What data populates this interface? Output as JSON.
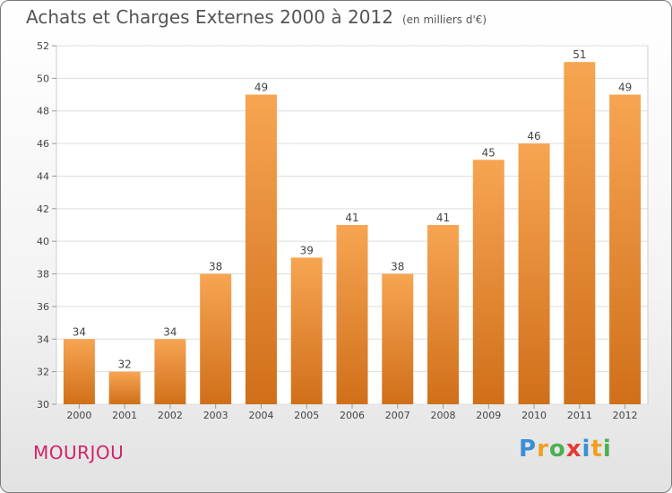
{
  "header": {
    "title": "Achats et Charges Externes 2000 à 2012",
    "subtitle": "(en milliers d'€)"
  },
  "footer": {
    "commune": "MOURJOU",
    "brand": "Proxiti",
    "brand_letters": [
      {
        "char": "P",
        "color": "#3a8fd6"
      },
      {
        "char": "r",
        "color": "#f0a020"
      },
      {
        "char": "o",
        "color": "#4caf50"
      },
      {
        "char": "x",
        "color": "#e53935"
      },
      {
        "char": "i",
        "color": "#3a8fd6"
      },
      {
        "char": "t",
        "color": "#f0a020"
      },
      {
        "char": "i",
        "color": "#4caf50"
      }
    ]
  },
  "chart_data": {
    "type": "bar",
    "title": "Achats et Charges Externes 2000 à 2012",
    "subtitle": "(en milliers d'€)",
    "categories": [
      "2000",
      "2001",
      "2002",
      "2003",
      "2004",
      "2005",
      "2006",
      "2007",
      "2008",
      "2009",
      "2010",
      "2011",
      "2012"
    ],
    "values": [
      34,
      32,
      34,
      38,
      49,
      39,
      41,
      38,
      41,
      45,
      46,
      51,
      49
    ],
    "ylim": [
      30,
      52
    ],
    "yticks": [
      30,
      32,
      34,
      36,
      38,
      40,
      42,
      44,
      46,
      48,
      50,
      52
    ],
    "grid": true,
    "bar_color_top": "#f7a552",
    "bar_color_bottom": "#d06f1a"
  }
}
